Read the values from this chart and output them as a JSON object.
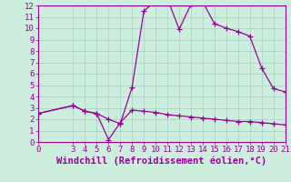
{
  "xlabel": "Windchill (Refroidissement éolien,°C)",
  "xlim": [
    0,
    21
  ],
  "ylim": [
    0,
    12
  ],
  "xticks": [
    0,
    3,
    4,
    5,
    6,
    7,
    8,
    9,
    10,
    11,
    12,
    13,
    14,
    15,
    16,
    17,
    18,
    19,
    20,
    21
  ],
  "yticks": [
    0,
    1,
    2,
    3,
    4,
    5,
    6,
    7,
    8,
    9,
    10,
    11,
    12
  ],
  "bg_color": "#cceedd",
  "line_color": "#990099",
  "grid_color": "#aacccc",
  "temp_x": [
    0,
    3,
    4,
    5,
    6,
    7,
    8,
    9,
    10,
    11,
    12,
    13,
    14,
    15,
    16,
    17,
    18,
    19,
    20,
    21
  ],
  "temp_y": [
    2.5,
    3.2,
    2.7,
    2.5,
    2.0,
    1.6,
    4.8,
    11.5,
    12.4,
    12.6,
    9.9,
    12.1,
    12.3,
    10.4,
    10.0,
    9.7,
    9.3,
    6.5,
    4.7,
    4.4
  ],
  "wind_x": [
    0,
    3,
    4,
    5,
    6,
    7,
    8,
    9,
    10,
    11,
    12,
    13,
    14,
    15,
    16,
    17,
    18,
    19,
    20,
    21
  ],
  "wind_y": [
    2.5,
    3.2,
    2.7,
    2.5,
    0.2,
    1.7,
    2.8,
    2.7,
    2.6,
    2.4,
    2.3,
    2.2,
    2.1,
    2.0,
    1.9,
    1.8,
    1.8,
    1.7,
    1.6,
    1.5
  ],
  "tick_fontsize": 6.5,
  "label_fontsize": 7.5
}
